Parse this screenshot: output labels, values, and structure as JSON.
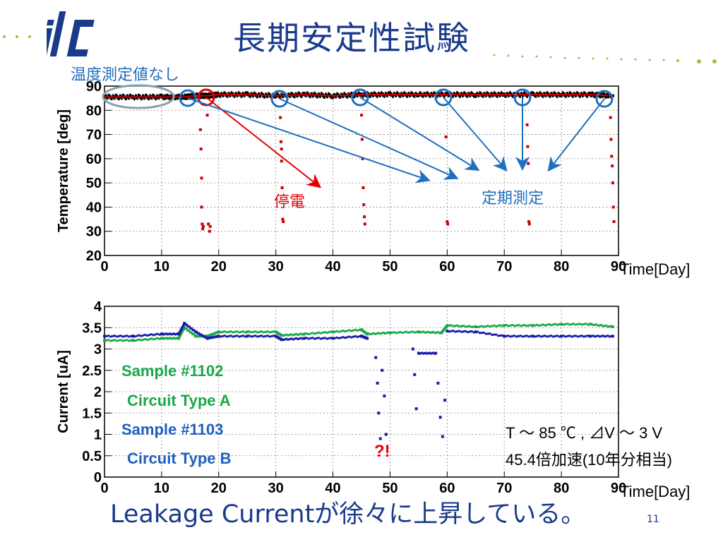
{
  "slide": {
    "title": "長期安定性試験",
    "footer": "Leakage Currentが徐々に上昇している。",
    "page_number": "11"
  },
  "colors": {
    "title_blue": "#1a3a8a",
    "annotation_blue": "#1f6fbf",
    "annotation_red": "#e00000",
    "green_series": "#1aa84a",
    "blue_series": "#1a1aa8"
  },
  "annotations": {
    "no_measurement": "温度測定値なし",
    "power_outage": "停電",
    "periodic_measurement": "定期測定",
    "anomaly": "?!",
    "condition_line1": "T ～ 85 ℃ , ⊿V ～ 3 V",
    "condition_line2": "45.4倍加速(10年分相当)"
  },
  "legend": {
    "sample_a": "Sample #1102",
    "circuit_a": "Circuit Type A",
    "sample_b": "Sample #1103",
    "circuit_b": "Circuit Type B"
  },
  "chart_data": [
    {
      "type": "scatter",
      "xlabel": "Time[Day]",
      "ylabel": "Temperature [deg]",
      "xlim": [
        0,
        90
      ],
      "ylim": [
        20,
        90
      ],
      "xticks": [
        0,
        10,
        20,
        30,
        40,
        50,
        60,
        70,
        80,
        90
      ],
      "yticks": [
        20,
        30,
        40,
        50,
        60,
        70,
        80,
        90
      ],
      "grid": true,
      "series": [
        {
          "color": "#000000",
          "x": [
            0,
            5,
            10,
            14,
            16,
            18,
            20,
            25,
            30,
            35,
            40,
            45,
            50,
            55,
            60,
            65,
            70,
            75,
            80,
            85,
            89
          ],
          "y": [
            85.5,
            85.5,
            85.5,
            85.5,
            86,
            86,
            86.5,
            86.5,
            86,
            86.5,
            86,
            86.5,
            86.5,
            86.5,
            86.5,
            86.5,
            86.5,
            86.5,
            86.5,
            86.5,
            86
          ]
        },
        {
          "color": "#cc0000",
          "x": [
            16.8,
            16.9,
            17.0,
            17.0,
            17.1,
            17.2,
            17.3,
            18.0,
            18.2,
            18.4,
            18.5,
            30.8,
            30.9,
            31.0,
            31.0,
            31.1,
            31.2,
            31.3,
            45.0,
            45.1,
            45.2,
            45.3,
            45.4,
            45.5,
            45.6,
            59.8,
            60.0,
            60.1,
            74.0,
            74.1,
            74.2,
            74.3,
            74.4,
            88.6,
            88.7,
            88.8,
            88.9,
            89.0,
            89.1,
            89.2
          ],
          "y": [
            72,
            64,
            52,
            40,
            33,
            31,
            32,
            78,
            33,
            30,
            32,
            77,
            67,
            64,
            59,
            48,
            35,
            34,
            78,
            68,
            60,
            48,
            41,
            36,
            33,
            69,
            34,
            33,
            74,
            65,
            58,
            34,
            33,
            77,
            68,
            61,
            57,
            50,
            40,
            34
          ]
        }
      ]
    },
    {
      "type": "scatter",
      "xlabel": "Time[Day]",
      "ylabel": "Current [uA]",
      "xlim": [
        0,
        90
      ],
      "ylim": [
        0,
        4
      ],
      "xticks": [
        0,
        10,
        20,
        30,
        40,
        50,
        60,
        70,
        80,
        90
      ],
      "yticks": [
        0,
        0.5,
        1,
        1.5,
        2,
        2.5,
        3,
        3.5,
        4
      ],
      "ytick_labels": [
        "0",
        "0.5",
        "1",
        "1.5",
        "2",
        "2.5",
        "3",
        "3.5",
        "4"
      ],
      "grid": true,
      "series": [
        {
          "color": "#1aa84a",
          "x": [
            0,
            5,
            10,
            13,
            14,
            16,
            18,
            20,
            25,
            30,
            31,
            35,
            40,
            45,
            46,
            50,
            55,
            59,
            60,
            65,
            70,
            75,
            80,
            85,
            89
          ],
          "y": [
            3.2,
            3.2,
            3.25,
            3.25,
            3.5,
            3.3,
            3.3,
            3.4,
            3.4,
            3.4,
            3.32,
            3.35,
            3.4,
            3.45,
            3.35,
            3.38,
            3.4,
            3.38,
            3.55,
            3.52,
            3.55,
            3.55,
            3.58,
            3.58,
            3.52
          ]
        },
        {
          "color": "#1a1aa8",
          "x": [
            0,
            5,
            10,
            13,
            14,
            16,
            18,
            20,
            25,
            30,
            31,
            35,
            40,
            45,
            46,
            47.5,
            47.8,
            48.0,
            48.3,
            48.6,
            49.0,
            49.3,
            54.0,
            54.3,
            54.6,
            55.0,
            58.0,
            58.4,
            58.8,
            59.2,
            59.6,
            60,
            65,
            70,
            75,
            80,
            85,
            89
          ],
          "y": [
            3.3,
            3.3,
            3.35,
            3.35,
            3.6,
            3.4,
            3.25,
            3.3,
            3.3,
            3.3,
            3.22,
            3.25,
            3.25,
            3.3,
            3.25,
            2.8,
            2.2,
            1.5,
            0.9,
            2.5,
            1.9,
            1.0,
            3.0,
            2.4,
            1.6,
            2.9,
            2.9,
            2.2,
            1.4,
            0.95,
            1.8,
            3.42,
            3.4,
            3.3,
            3.3,
            3.3,
            3.3,
            3.3
          ]
        }
      ]
    }
  ]
}
